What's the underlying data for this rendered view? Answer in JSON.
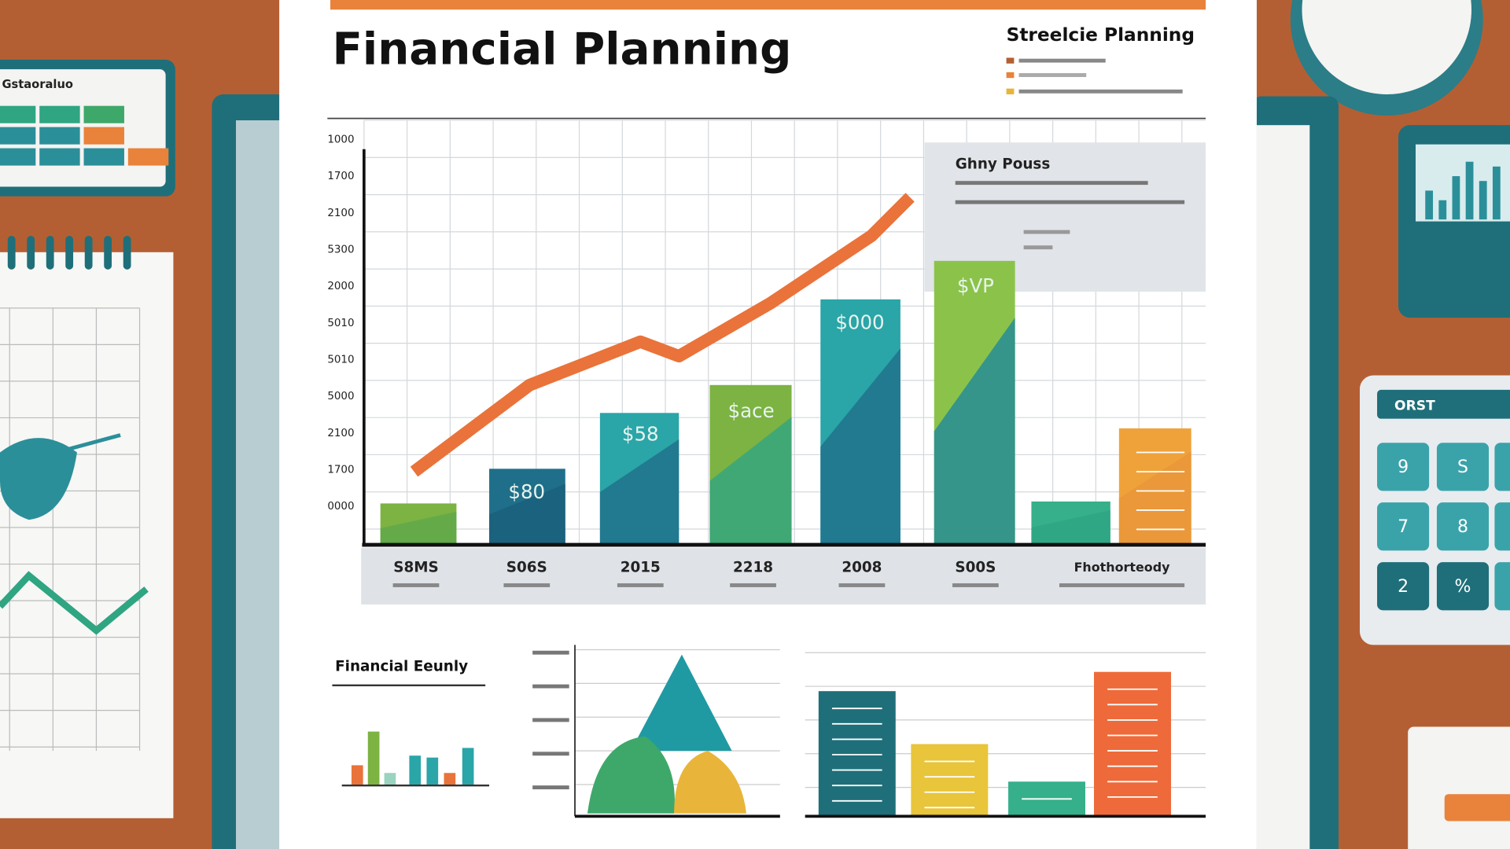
{
  "header": {
    "title": "Financial Planning",
    "subtitle": "Streelcie Planning"
  },
  "main_chart": {
    "y_labels": [
      "1000",
      "1700",
      "2100",
      "5300",
      "2000",
      "5010",
      "5010",
      "5000",
      "2100",
      "1700",
      "0000"
    ],
    "x_labels": [
      "S8MS",
      "S06S",
      "2015",
      "2218",
      "2008",
      "S00S",
      "Fhothorteody"
    ],
    "bar_labels": [
      "$80",
      "$58",
      "$ace",
      "$000",
      "$VP"
    ],
    "info_box_title": "Ghny Pouss"
  },
  "bottom": {
    "panel_title": "Financial Eeunly"
  },
  "left_card": {
    "title": "Gstaoraluo"
  },
  "calculator": {
    "display": "ORST",
    "keys": [
      "9",
      "S",
      "7",
      "8",
      "2",
      "%"
    ]
  }
}
